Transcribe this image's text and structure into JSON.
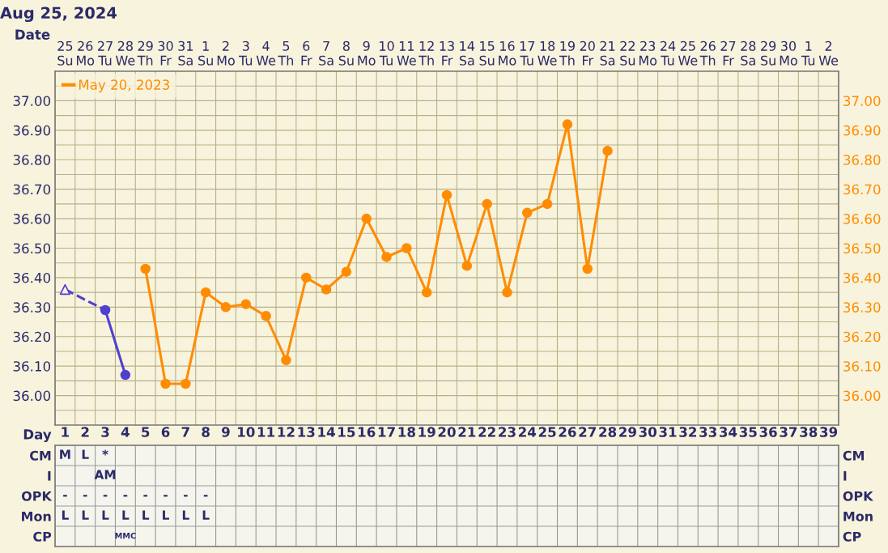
{
  "chart_data": [
    {
      "type": "line",
      "title": "Aug 25, 2024",
      "xlabel": "Date",
      "categories": [
        "25\nSu",
        "26\nMo",
        "27\nTu",
        "28\nWe",
        "29\nTh",
        "30\nFr",
        "31\nSa",
        "1\nSu",
        "2\nMo",
        "3\nTu",
        "4\nWe",
        "5\nTh",
        "6\nFr",
        "7\nSa",
        "8\nSu",
        "9\nMo",
        "10\nTu",
        "11\nWe",
        "12\nTh",
        "13\nFr",
        "14\nSa",
        "15\nSu",
        "16\nMo",
        "17\nTu",
        "18\nWe",
        "19\nTh",
        "20\nFr",
        "21\nSa",
        "22\nSu",
        "23\nMo",
        "24\nTu",
        "25\nWe",
        "26\nTh",
        "27\nFr",
        "28\nSa",
        "29\nSu",
        "30\nMo",
        "1\nTu",
        "2\nWe"
      ],
      "ylim": [
        35.9,
        37.1
      ],
      "y2lim": [
        35.9,
        37.1
      ],
      "yticks": [
        {
          "value": 35.95,
          "label": null
        },
        {
          "value": 36.0,
          "label": "36.00"
        },
        {
          "value": 36.05,
          "label": null
        },
        {
          "value": 36.1,
          "label": "36.10"
        },
        {
          "value": 36.15,
          "label": null
        },
        {
          "value": 36.2,
          "label": "36.20"
        },
        {
          "value": 36.25,
          "label": null
        },
        {
          "value": 36.3,
          "label": "36.30"
        },
        {
          "value": 36.35,
          "label": null
        },
        {
          "value": 36.4,
          "label": "36.40"
        },
        {
          "value": 36.45,
          "label": null
        },
        {
          "value": 36.5,
          "label": "36.50"
        },
        {
          "value": 36.55,
          "label": null
        },
        {
          "value": 36.6,
          "label": "36.60"
        },
        {
          "value": 36.65,
          "label": null
        },
        {
          "value": 36.7,
          "label": "36.70"
        },
        {
          "value": 36.75,
          "label": null
        },
        {
          "value": 36.8,
          "label": "36.80"
        },
        {
          "value": 36.85,
          "label": null
        },
        {
          "value": 36.9,
          "label": "36.90"
        },
        {
          "value": 36.95,
          "label": null
        },
        {
          "value": 37.0,
          "label": "37.00"
        },
        {
          "value": 37.05,
          "label": null
        }
      ],
      "y2ticks": [
        {
          "value": 36.0,
          "label": "36.00"
        },
        {
          "value": 36.1,
          "label": "36.10"
        },
        {
          "value": 36.2,
          "label": "36.20"
        },
        {
          "value": 36.3,
          "label": "36.30"
        },
        {
          "value": 36.4,
          "label": "36.40"
        },
        {
          "value": 36.5,
          "label": "36.50"
        },
        {
          "value": 36.6,
          "label": "36.60"
        },
        {
          "value": 36.7,
          "label": "36.70"
        },
        {
          "value": 36.8,
          "label": "36.80"
        },
        {
          "value": 36.9,
          "label": "36.90"
        },
        {
          "value": 37.0,
          "label": "37.00"
        }
      ],
      "grid": true,
      "legend": "top left",
      "series": [
        {
          "color": "#5040d0",
          "values": [
            36.36,
            null,
            36.29,
            null,
            null,
            null,
            null,
            null,
            null,
            null,
            null,
            null,
            null,
            null,
            null,
            null,
            null,
            null,
            null,
            null,
            null,
            null,
            null,
            null,
            null,
            null,
            null,
            null,
            null,
            null,
            null,
            null,
            null,
            null,
            null,
            null,
            null,
            null,
            null
          ],
          "line_style": "dashed"
        },
        {
          "type": "scatter",
          "color": "#5040d0",
          "values": [
            36.36,
            null,
            null,
            null,
            null,
            null,
            null,
            null,
            null,
            null,
            null,
            null,
            null,
            null,
            null,
            null,
            null,
            null,
            null,
            null,
            null,
            null,
            null,
            null,
            null,
            null,
            null,
            null,
            null,
            null,
            null,
            null,
            null,
            null,
            null,
            null,
            null,
            null,
            null
          ],
          "marker": "triangle"
        },
        {
          "color": "#5040d0",
          "values": [
            null,
            null,
            36.29,
            36.07,
            null,
            null,
            null,
            null,
            null,
            null,
            null,
            null,
            null,
            null,
            null,
            null,
            null,
            null,
            null,
            null,
            null,
            null,
            null,
            null,
            null,
            null,
            null,
            null,
            null,
            null,
            null,
            null,
            null,
            null,
            null,
            null,
            null,
            null,
            null
          ],
          "line_style": "solid",
          "marker": "circle"
        },
        {
          "name": "May 20, 2023",
          "color": "#ff8c00",
          "values": [
            null,
            null,
            null,
            null,
            36.43,
            36.04,
            36.04,
            36.35,
            36.3,
            36.31,
            36.27,
            36.12,
            36.4,
            36.36,
            36.42,
            36.6,
            36.47,
            36.5,
            36.35,
            36.68,
            36.44,
            36.65,
            36.35,
            36.62,
            36.65,
            36.92,
            36.43,
            36.83,
            null,
            null,
            null,
            null,
            null,
            null,
            null,
            null,
            null,
            null,
            null
          ],
          "line_style": "solid",
          "marker": "circle"
        }
      ]
    },
    {
      "type": "heatmap",
      "xlabel": "Day",
      "categories": [
        "1",
        "2",
        "3",
        "4",
        "5",
        "6",
        "7",
        "8",
        "9",
        "10",
        "11",
        "12",
        "13",
        "14",
        "15",
        "16",
        "17",
        "18",
        "19",
        "20",
        "21",
        "22",
        "23",
        "24",
        "25",
        "26",
        "27",
        "28",
        "29",
        "30",
        "31",
        "32",
        "33",
        "34",
        "35",
        "36",
        "37",
        "38",
        "39"
      ],
      "y_categories": [
        "CM",
        "I",
        "OPK",
        "Mon",
        "CP"
      ],
      "y2_categories": [
        "CM",
        "I",
        "OPK",
        "Mon",
        "CP"
      ],
      "cells": [
        [
          null,
          null,
          null,
          null,
          null,
          null,
          null,
          null,
          null,
          null,
          null,
          null,
          null,
          null,
          null,
          null,
          null,
          null,
          null,
          null,
          null,
          null,
          null,
          null,
          null,
          null,
          null,
          null,
          null,
          null,
          null,
          null,
          null,
          null,
          null,
          null,
          null,
          null,
          null
        ],
        [
          null,
          null,
          null,
          null,
          null,
          null,
          null,
          null,
          null,
          null,
          null,
          null,
          null,
          null,
          null,
          null,
          null,
          null,
          null,
          null,
          null,
          null,
          null,
          null,
          null,
          null,
          null,
          null,
          null,
          null,
          null,
          null,
          null,
          null,
          null,
          null,
          null,
          null,
          null
        ],
        [
          null,
          null,
          null,
          null,
          null,
          null,
          null,
          null,
          null,
          null,
          null,
          null,
          null,
          null,
          null,
          null,
          null,
          null,
          null,
          null,
          null,
          null,
          null,
          null,
          null,
          null,
          null,
          null,
          null,
          null,
          null,
          null,
          null,
          null,
          null,
          null,
          null,
          null,
          null
        ],
        [
          null,
          null,
          null,
          null,
          null,
          null,
          null,
          null,
          null,
          null,
          null,
          null,
          null,
          null,
          null,
          null,
          null,
          null,
          null,
          null,
          null,
          null,
          null,
          null,
          null,
          null,
          null,
          null,
          null,
          null,
          null,
          null,
          null,
          null,
          null,
          null,
          null,
          null,
          null
        ],
        [
          null,
          null,
          null,
          null,
          null,
          null,
          null,
          null,
          null,
          null,
          null,
          null,
          null,
          null,
          null,
          null,
          null,
          null,
          null,
          null,
          null,
          null,
          null,
          null,
          null,
          null,
          null,
          null,
          null,
          null,
          null,
          null,
          null,
          null,
          null,
          null,
          null,
          null,
          null
        ]
      ],
      "cell_labels": [
        [
          "M",
          "L",
          "*",
          null,
          null,
          null,
          null,
          null,
          null,
          null,
          null,
          null,
          null,
          null,
          null,
          null,
          null,
          null,
          null,
          null,
          null,
          null,
          null,
          null,
          null,
          null,
          null,
          null,
          null,
          null,
          null,
          null,
          null,
          null,
          null,
          null,
          null,
          null,
          null
        ],
        [
          null,
          null,
          "AM",
          null,
          null,
          null,
          null,
          null,
          null,
          null,
          null,
          null,
          null,
          null,
          null,
          null,
          null,
          null,
          null,
          null,
          null,
          null,
          null,
          null,
          null,
          null,
          null,
          null,
          null,
          null,
          null,
          null,
          null,
          null,
          null,
          null,
          null,
          null,
          null
        ],
        [
          "-",
          "-",
          "-",
          "-",
          "-",
          "-",
          "-",
          "-",
          null,
          null,
          null,
          null,
          null,
          null,
          null,
          null,
          null,
          null,
          null,
          null,
          null,
          null,
          null,
          null,
          null,
          null,
          null,
          null,
          null,
          null,
          null,
          null,
          null,
          null,
          null,
          null,
          null,
          null,
          null
        ],
        [
          "L",
          "L",
          "L",
          "L",
          "L",
          "L",
          "L",
          "L",
          null,
          null,
          null,
          null,
          null,
          null,
          null,
          null,
          null,
          null,
          null,
          null,
          null,
          null,
          null,
          null,
          null,
          null,
          null,
          null,
          null,
          null,
          null,
          null,
          null,
          null,
          null,
          null,
          null,
          null,
          null
        ],
        [
          null,
          null,
          null,
          "MMC",
          null,
          null,
          null,
          null,
          null,
          null,
          null,
          null,
          null,
          null,
          null,
          null,
          null,
          null,
          null,
          null,
          null,
          null,
          null,
          null,
          null,
          null,
          null,
          null,
          null,
          null,
          null,
          null,
          null,
          null,
          null,
          null,
          null,
          null,
          null
        ]
      ]
    }
  ]
}
